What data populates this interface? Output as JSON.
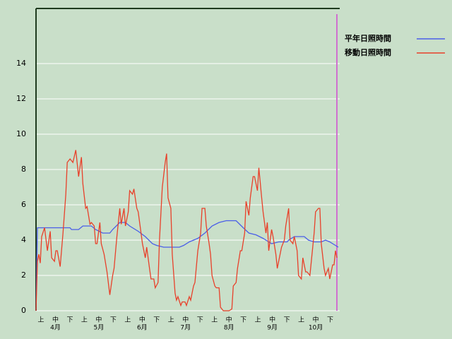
{
  "chart_data": {
    "type": "line",
    "categories": [
      "上",
      "中",
      "下",
      "上",
      "中",
      "下",
      "上",
      "中",
      "下",
      "上",
      "中",
      "下",
      "上",
      "中",
      "下",
      "上",
      "中",
      "下",
      "上",
      "中",
      "下"
    ],
    "months": [
      "4月",
      "5月",
      "6月",
      "7月",
      "8月",
      "9月",
      "10月"
    ],
    "xlim": [
      0,
      214
    ],
    "ylim": [
      0,
      17.12
    ],
    "yticks": [
      0,
      2,
      4,
      6,
      8,
      10,
      12,
      14
    ],
    "grid": true,
    "legend": "top-right",
    "series": [
      {
        "name": "平年日照時間",
        "color": "#4a5ee8",
        "x": [
          0,
          1,
          24,
          25,
          30,
          33,
          39,
          42,
          47,
          52,
          54,
          59,
          63,
          66,
          72,
          77,
          82,
          85,
          90,
          101,
          104,
          108,
          114,
          119,
          124,
          129,
          134,
          141,
          146,
          150,
          155,
          160,
          164,
          166,
          171,
          177,
          178,
          182,
          189,
          192,
          196,
          201,
          204,
          207,
          211,
          213
        ],
        "values": [
          0,
          4.7,
          4.7,
          4.6,
          4.6,
          4.8,
          4.8,
          4.6,
          4.4,
          4.4,
          4.6,
          5.0,
          5.0,
          4.8,
          4.5,
          4.2,
          3.8,
          3.7,
          3.6,
          3.6,
          3.7,
          3.9,
          4.1,
          4.4,
          4.8,
          5.0,
          5.1,
          5.1,
          4.7,
          4.4,
          4.3,
          4.1,
          3.9,
          3.8,
          3.9,
          3.9,
          4.0,
          4.2,
          4.2,
          4.0,
          3.9,
          3.9,
          4.0,
          3.9,
          3.7,
          3.6
        ]
      },
      {
        "name": "移動日照時間",
        "color": "#e8402a",
        "x": [
          0,
          1,
          2,
          3,
          4,
          6,
          8,
          10,
          11,
          13,
          14,
          15,
          17,
          19,
          21,
          22,
          24,
          26,
          28,
          30,
          32,
          33,
          35,
          36,
          38,
          39,
          41,
          42,
          43,
          45,
          46,
          48,
          50,
          52,
          54,
          55,
          57,
          59,
          60,
          62,
          63,
          65,
          66,
          68,
          69,
          71,
          72,
          74,
          75,
          77,
          78,
          80,
          81,
          83,
          84,
          86,
          87,
          89,
          91,
          92,
          93,
          95,
          96,
          98,
          99,
          100,
          102,
          103,
          105,
          106,
          108,
          109,
          111,
          112,
          114,
          116,
          117,
          119,
          120,
          122,
          123,
          124,
          126,
          127,
          129,
          130,
          132,
          134,
          136,
          138,
          139,
          141,
          142,
          144,
          145,
          147,
          148,
          150,
          151,
          153,
          154,
          156,
          157,
          159,
          160,
          162,
          163,
          164,
          166,
          167,
          169,
          170,
          172,
          173,
          175,
          176,
          178,
          179,
          181,
          182,
          184,
          185,
          187,
          188,
          190,
          191,
          193,
          194,
          196,
          197,
          199,
          200,
          201,
          203,
          204,
          206,
          207,
          209,
          210,
          211,
          212
        ],
        "values": [
          0,
          2.8,
          3.2,
          2.7,
          4.2,
          4.7,
          3.4,
          4.5,
          3.0,
          2.8,
          3.4,
          3.4,
          2.5,
          4.4,
          6.6,
          8.4,
          8.6,
          8.4,
          9.1,
          7.6,
          8.7,
          7.2,
          5.8,
          5.9,
          4.9,
          5.0,
          4.8,
          3.8,
          3.8,
          5.0,
          3.8,
          3.2,
          2.2,
          0.9,
          2.0,
          2.4,
          4.2,
          5.8,
          4.9,
          5.8,
          4.8,
          5.6,
          6.8,
          6.6,
          6.9,
          5.8,
          5.6,
          4.4,
          3.8,
          3.0,
          3.6,
          2.4,
          1.8,
          1.8,
          1.3,
          1.6,
          4.0,
          7.0,
          8.4,
          8.9,
          6.4,
          5.8,
          3.2,
          1.0,
          0.6,
          0.8,
          0.3,
          0.5,
          0.5,
          0.3,
          0.8,
          0.6,
          1.4,
          1.6,
          3.4,
          4.4,
          5.8,
          5.8,
          4.8,
          3.8,
          3.2,
          2.0,
          1.4,
          1.3,
          1.3,
          0.2,
          0,
          0,
          0,
          0.1,
          1.4,
          1.6,
          2.4,
          3.4,
          3.4,
          4.4,
          6.2,
          5.4,
          6.4,
          7.6,
          7.6,
          6.8,
          8.1,
          6.4,
          5.6,
          4.4,
          5.0,
          3.4,
          4.6,
          4.2,
          3.2,
          2.4,
          3.2,
          3.6,
          4.0,
          4.8,
          5.8,
          4.0,
          3.8,
          4.2,
          3.4,
          2.0,
          1.8,
          3.0,
          2.2,
          2.2,
          2.0,
          2.8,
          4.4,
          5.6,
          5.8,
          5.8,
          3.8,
          2.4,
          2.0,
          2.4,
          1.8,
          2.6,
          2.6,
          3.4,
          3.0
        ]
      }
    ]
  }
}
